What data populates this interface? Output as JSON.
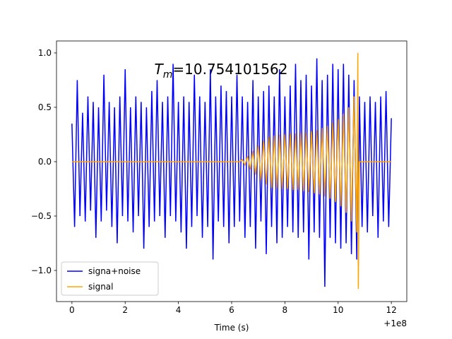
{
  "chart_data": {
    "type": "line",
    "annotation": {
      "symbol": "T",
      "subscript": "m",
      "text": "=10.754101562"
    },
    "xlabel": "Time (s)",
    "x_offset_label": "+1e8",
    "x": [
      0,
      0.1,
      0.2,
      0.3,
      0.4,
      0.5,
      0.6,
      0.7,
      0.8,
      0.9,
      1,
      1.1,
      1.2,
      1.3,
      1.4,
      1.5,
      1.6,
      1.7,
      1.8,
      1.9,
      2,
      2.1,
      2.2,
      2.3,
      2.4,
      2.5,
      2.6,
      2.7,
      2.8,
      2.9,
      3,
      3.1,
      3.2,
      3.3,
      3.4,
      3.5,
      3.6,
      3.7,
      3.8,
      3.9,
      4,
      4.1,
      4.2,
      4.3,
      4.4,
      4.5,
      4.6,
      4.7,
      4.8,
      4.9,
      5,
      5.1,
      5.2,
      5.3,
      5.4,
      5.5,
      5.6,
      5.7,
      5.8,
      5.9,
      6,
      6.1,
      6.2,
      6.3,
      6.4,
      6.5,
      6.6,
      6.7,
      6.8,
      6.9,
      7,
      7.1,
      7.2,
      7.3,
      7.4,
      7.5,
      7.6,
      7.7,
      7.8,
      7.9,
      8,
      8.1,
      8.2,
      8.3,
      8.4,
      8.5,
      8.6,
      8.7,
      8.8,
      8.9,
      9,
      9.1,
      9.2,
      9.3,
      9.4,
      9.5,
      9.6,
      9.7,
      9.8,
      9.9,
      10,
      10.1,
      10.2,
      10.3,
      10.4,
      10.5,
      10.6,
      10.7,
      10.74,
      10.76,
      10.8,
      10.9,
      11,
      11.1,
      11.2,
      11.3,
      11.4,
      11.5,
      11.6,
      11.7,
      11.8,
      11.9,
      12
    ],
    "series": [
      {
        "name": "signa+noise",
        "color": "#0000ff",
        "values": [
          0.35,
          -0.6,
          0.75,
          -0.5,
          0.45,
          -0.55,
          0.6,
          -0.45,
          0.55,
          -0.7,
          0.5,
          -0.55,
          0.8,
          -0.45,
          0.55,
          -0.6,
          0.5,
          -0.75,
          0.6,
          -0.5,
          0.85,
          -0.55,
          0.5,
          -0.65,
          0.6,
          -0.5,
          0.55,
          -0.8,
          0.5,
          -0.6,
          0.65,
          -0.55,
          0.75,
          -0.5,
          0.55,
          -0.7,
          0.6,
          -0.5,
          0.9,
          -0.55,
          0.55,
          -0.65,
          0.6,
          -0.8,
          0.55,
          -0.6,
          0.8,
          -0.5,
          0.6,
          -0.7,
          0.55,
          -0.6,
          0.85,
          -0.9,
          0.6,
          -0.55,
          0.7,
          -0.6,
          0.65,
          -0.75,
          0.6,
          -0.6,
          0.8,
          -0.55,
          0.6,
          -0.7,
          0.55,
          -0.6,
          0.75,
          -0.8,
          0.6,
          -0.55,
          0.65,
          -0.85,
          0.7,
          -0.6,
          0.6,
          -0.75,
          0.85,
          -0.7,
          0.6,
          -0.6,
          0.7,
          -0.65,
          0.9,
          -0.7,
          0.75,
          -0.65,
          0.8,
          -0.9,
          0.7,
          -0.65,
          0.95,
          -0.7,
          0.75,
          -1.15,
          0.8,
          -0.7,
          0.9,
          -0.75,
          0.85,
          -0.8,
          0.9,
          -0.75,
          0.8,
          -0.85,
          0.75,
          -0.9,
          0.7,
          -0.95,
          0.6,
          -0.6,
          0.55,
          -0.65,
          0.6,
          -0.5,
          0.55,
          -0.7,
          0.6,
          -0.55,
          0.65,
          -0.6,
          0.4
        ]
      },
      {
        "name": "signal",
        "color": "#ffa500",
        "values": [
          0,
          0,
          0,
          0,
          0,
          0,
          0,
          0,
          0,
          0,
          0,
          0,
          0,
          0,
          0,
          0,
          0,
          0,
          0,
          0,
          0,
          0,
          0,
          0,
          0,
          0,
          0,
          0,
          0,
          0,
          0,
          0,
          0,
          0,
          0,
          0,
          0,
          0,
          0,
          0,
          0,
          0,
          0,
          0,
          0,
          0,
          0,
          0,
          0,
          0,
          0,
          0,
          0,
          0,
          0,
          0,
          0,
          0,
          0,
          0,
          0,
          0,
          0,
          0,
          0.02,
          -0.03,
          0.05,
          -0.07,
          0.1,
          -0.12,
          0.15,
          -0.17,
          0.19,
          -0.21,
          0.23,
          -0.24,
          0.24,
          -0.25,
          0.25,
          -0.25,
          0.25,
          -0.25,
          0.26,
          -0.26,
          0.26,
          -0.26,
          0.27,
          -0.27,
          0.27,
          -0.28,
          0.28,
          -0.29,
          0.29,
          -0.3,
          0.31,
          -0.32,
          0.33,
          -0.34,
          0.36,
          -0.37,
          0.39,
          -0.41,
          0.44,
          -0.47,
          0.5,
          -0.55,
          0.6,
          -0.65,
          1.0,
          -1.17,
          0,
          0,
          0,
          0,
          0,
          0,
          0,
          0,
          0,
          0,
          0,
          0,
          0
        ]
      }
    ],
    "xlim": [
      -0.58,
      12.58
    ],
    "xticks": [
      0,
      2,
      4,
      6,
      8,
      10,
      12
    ],
    "ylim": [
      -1.286,
      1.11
    ],
    "yticks": [
      {
        "value": -1,
        "label": "−1.0"
      },
      {
        "value": -0.5,
        "label": "−0.5"
      },
      {
        "value": 0,
        "label": "0.0"
      },
      {
        "value": 0.5,
        "label": "0.5"
      },
      {
        "value": 1,
        "label": "1.0"
      }
    ],
    "legend": "lower left"
  }
}
